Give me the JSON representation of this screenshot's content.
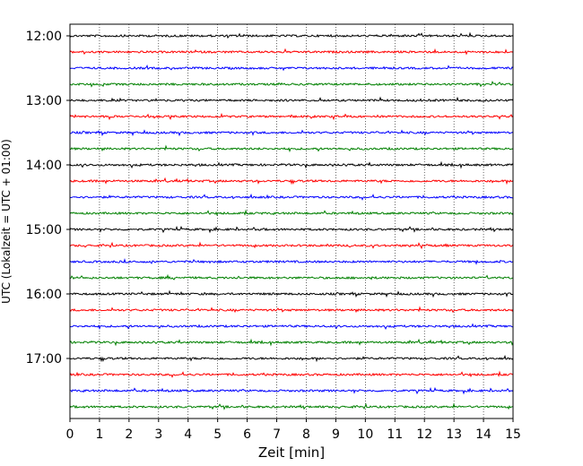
{
  "chart_data": {
    "type": "line",
    "title": "",
    "xlabel": "Zeit  [min]",
    "ylabel": "UTC (Lokalzeit = UTC + 01:00)",
    "xlim": [
      0,
      15
    ],
    "x_ticks": [
      "0",
      "1",
      "2",
      "3",
      "4",
      "5",
      "6",
      "7",
      "8",
      "9",
      "10",
      "11",
      "12",
      "13",
      "14",
      "15"
    ],
    "y_ticks": [
      {
        "label": "12:00",
        "trace_index": 0
      },
      {
        "label": "13:00",
        "trace_index": 4
      },
      {
        "label": "14:00",
        "trace_index": 8
      },
      {
        "label": "15:00",
        "trace_index": 12
      },
      {
        "label": "16:00",
        "trace_index": 16
      },
      {
        "label": "17:00",
        "trace_index": 20
      }
    ],
    "grid": {
      "x": "dotted",
      "y": false
    },
    "trace_interval_minutes": 15,
    "trace_start": "12:00",
    "trace_count": 24,
    "trace_colors": [
      "#000000",
      "#ff0000",
      "#0000ff",
      "#008000"
    ]
  }
}
